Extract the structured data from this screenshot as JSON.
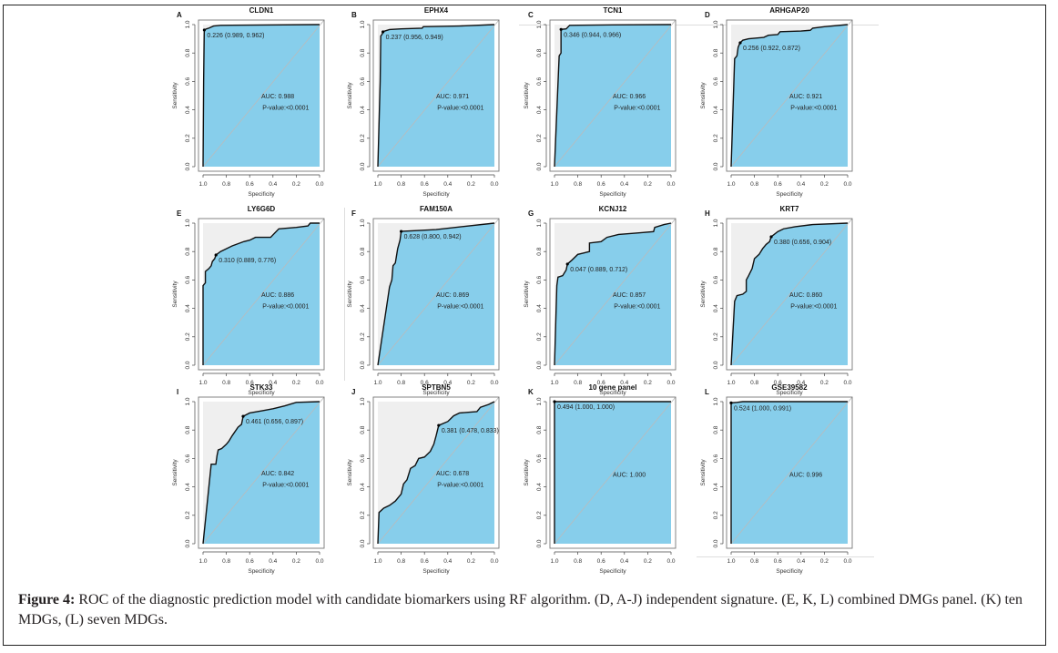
{
  "figure": {
    "caption_label": "Figure 4:",
    "caption_text": " ROC of the diagnostic prediction model with candidate biomarkers using RF algorithm. (D, A-J) independent signature. (E, K, L) combined DMGs panel. (K) ten MDGs, (L) seven MDGs."
  },
  "colors": {
    "auc_fill": "#87ceeb",
    "bg_fill": "#efefef",
    "curve": "#111111",
    "diagonal": "#bbbbbb",
    "axis": "#444444"
  },
  "chart_data": [
    {
      "type": "line",
      "panel": "A",
      "title": "CLDN1",
      "xlabel": "Specificity",
      "ylabel": "Sensitivity",
      "xlim": [
        1.0,
        0.0
      ],
      "ylim": [
        0.0,
        1.0
      ],
      "xticks": [
        "1.0",
        "0.8",
        "0.6",
        "0.4",
        "0.2",
        "0.0"
      ],
      "yticks": [
        "0.0",
        "0.2",
        "0.4",
        "0.6",
        "0.8",
        "1.0"
      ],
      "threshold_label": "0.226 (0.989, 0.962)",
      "threshold_point": [
        0.989,
        0.962
      ],
      "auc_label": "AUC: 0.988",
      "pvalue_label": "P-value:<0.0001",
      "curve": [
        [
          1.0,
          0.0
        ],
        [
          0.995,
          0.6
        ],
        [
          0.99,
          0.93
        ],
        [
          0.989,
          0.962
        ],
        [
          0.97,
          0.97
        ],
        [
          0.95,
          0.975
        ],
        [
          0.91,
          0.99
        ],
        [
          0.85,
          0.995
        ],
        [
          0.0,
          1.0
        ]
      ]
    },
    {
      "type": "line",
      "panel": "B",
      "title": "EPHX4",
      "xlabel": "Specificity",
      "ylabel": "Sensitivity",
      "xlim": [
        1.0,
        0.0
      ],
      "ylim": [
        0.0,
        1.0
      ],
      "xticks": [
        "1.0",
        "0.8",
        "0.6",
        "0.4",
        "0.2",
        "0.0"
      ],
      "yticks": [
        "0.0",
        "0.2",
        "0.4",
        "0.6",
        "0.8",
        "1.0"
      ],
      "threshold_label": "0.237 (0.956, 0.949)",
      "threshold_point": [
        0.956,
        0.949
      ],
      "auc_label": "AUC: 0.971",
      "pvalue_label": "P-value:<0.0001",
      "curve": [
        [
          1.0,
          0.0
        ],
        [
          0.98,
          0.6
        ],
        [
          0.975,
          0.92
        ],
        [
          0.965,
          0.93
        ],
        [
          0.956,
          0.949
        ],
        [
          0.94,
          0.955
        ],
        [
          0.9,
          0.965
        ],
        [
          0.8,
          0.97
        ],
        [
          0.62,
          0.975
        ],
        [
          0.61,
          0.985
        ],
        [
          0.3,
          0.99
        ],
        [
          0.0,
          1.0
        ]
      ]
    },
    {
      "type": "line",
      "panel": "C",
      "title": "TCN1",
      "xlabel": "Specificity",
      "ylabel": "Sensitivity",
      "xlim": [
        1.0,
        0.0
      ],
      "ylim": [
        0.0,
        1.0
      ],
      "xticks": [
        "1.0",
        "0.8",
        "0.6",
        "0.4",
        "0.2",
        "0.0"
      ],
      "yticks": [
        "0.0",
        "0.2",
        "0.4",
        "0.6",
        "0.8",
        "1.0"
      ],
      "threshold_label": "0.346 (0.944, 0.966)",
      "threshold_point": [
        0.944,
        0.966
      ],
      "auc_label": "AUC: 0.966",
      "pvalue_label": "P-value:<0.0001",
      "curve": [
        [
          1.0,
          0.0
        ],
        [
          0.96,
          0.78
        ],
        [
          0.944,
          0.8
        ],
        [
          0.944,
          0.966
        ],
        [
          0.9,
          0.97
        ],
        [
          0.87,
          0.995
        ],
        [
          0.5,
          0.998
        ],
        [
          0.0,
          1.0
        ]
      ]
    },
    {
      "type": "line",
      "panel": "D",
      "title": "ARHGAP20",
      "xlabel": "Specificity",
      "ylabel": "Sensitivity",
      "xlim": [
        1.0,
        0.0
      ],
      "ylim": [
        0.0,
        1.0
      ],
      "xticks": [
        "1.0",
        "0.8",
        "0.6",
        "0.4",
        "0.2",
        "0.0"
      ],
      "yticks": [
        "0.0",
        "0.2",
        "0.4",
        "0.6",
        "0.8",
        "1.0"
      ],
      "threshold_label": "0.256 (0.922, 0.872)",
      "threshold_point": [
        0.922,
        0.872
      ],
      "auc_label": "AUC: 0.921",
      "pvalue_label": "P-value:<0.0001",
      "curve": [
        [
          1.0,
          0.0
        ],
        [
          0.97,
          0.76
        ],
        [
          0.95,
          0.78
        ],
        [
          0.94,
          0.84
        ],
        [
          0.93,
          0.86
        ],
        [
          0.922,
          0.872
        ],
        [
          0.9,
          0.89
        ],
        [
          0.85,
          0.9
        ],
        [
          0.72,
          0.91
        ],
        [
          0.68,
          0.925
        ],
        [
          0.6,
          0.93
        ],
        [
          0.58,
          0.95
        ],
        [
          0.4,
          0.955
        ],
        [
          0.32,
          0.96
        ],
        [
          0.3,
          0.975
        ],
        [
          0.2,
          0.985
        ],
        [
          0.0,
          1.0
        ]
      ]
    },
    {
      "type": "line",
      "panel": "E",
      "title": "LY6G6D",
      "xlabel": "Specificity",
      "ylabel": "Sensitivity",
      "xlim": [
        1.0,
        0.0
      ],
      "ylim": [
        0.0,
        1.0
      ],
      "xticks": [
        "1.0",
        "0.8",
        "0.6",
        "0.4",
        "0.2",
        "0.0"
      ],
      "yticks": [
        "0.0",
        "0.2",
        "0.4",
        "0.6",
        "0.8",
        "1.0"
      ],
      "threshold_label": "0.310 (0.889, 0.776)",
      "threshold_point": [
        0.889,
        0.776
      ],
      "auc_label": "AUC: 0.886",
      "pvalue_label": "P-value:<0.0001",
      "curve": [
        [
          1.0,
          0.0
        ],
        [
          1.0,
          0.56
        ],
        [
          0.98,
          0.58
        ],
        [
          0.98,
          0.66
        ],
        [
          0.95,
          0.68
        ],
        [
          0.93,
          0.7
        ],
        [
          0.92,
          0.73
        ],
        [
          0.9,
          0.75
        ],
        [
          0.889,
          0.776
        ],
        [
          0.85,
          0.8
        ],
        [
          0.75,
          0.84
        ],
        [
          0.65,
          0.87
        ],
        [
          0.6,
          0.88
        ],
        [
          0.55,
          0.9
        ],
        [
          0.42,
          0.9
        ],
        [
          0.35,
          0.96
        ],
        [
          0.2,
          0.97
        ],
        [
          0.1,
          0.98
        ],
        [
          0.08,
          1.0
        ],
        [
          0.0,
          1.0
        ]
      ]
    },
    {
      "type": "line",
      "panel": "F",
      "title": "FAM150A",
      "xlabel": "Specificity",
      "ylabel": "Sensitivity",
      "xlim": [
        1.0,
        0.0
      ],
      "ylim": [
        0.0,
        1.0
      ],
      "xticks": [
        "1.0",
        "0.8",
        "0.6",
        "0.4",
        "0.2",
        "0.0"
      ],
      "yticks": [
        "0.0",
        "0.2",
        "0.4",
        "0.6",
        "0.8",
        "1.0"
      ],
      "threshold_label": "0.628 (0.800, 0.942)",
      "threshold_point": [
        0.8,
        0.942
      ],
      "auc_label": "AUC: 0.869",
      "pvalue_label": "P-value:<0.0001",
      "curve": [
        [
          1.0,
          0.0
        ],
        [
          0.9,
          0.55
        ],
        [
          0.88,
          0.6
        ],
        [
          0.87,
          0.7
        ],
        [
          0.85,
          0.72
        ],
        [
          0.83,
          0.82
        ],
        [
          0.81,
          0.88
        ],
        [
          0.8,
          0.942
        ],
        [
          0.5,
          0.955
        ],
        [
          0.0,
          1.0
        ]
      ]
    },
    {
      "type": "line",
      "panel": "G",
      "title": "KCNJ12",
      "xlabel": "Specificity",
      "ylabel": "Sensitivity",
      "xlim": [
        1.0,
        0.0
      ],
      "ylim": [
        0.0,
        1.0
      ],
      "xticks": [
        "1.0",
        "0.8",
        "0.6",
        "0.4",
        "0.2",
        "0.0"
      ],
      "yticks": [
        "0.0",
        "0.2",
        "0.4",
        "0.6",
        "0.8",
        "1.0"
      ],
      "threshold_label": "0.047 (0.889, 0.712)",
      "threshold_point": [
        0.889,
        0.712
      ],
      "auc_label": "AUC: 0.857",
      "pvalue_label": "P-value:<0.0001",
      "curve": [
        [
          1.0,
          0.0
        ],
        [
          0.98,
          0.56
        ],
        [
          0.97,
          0.62
        ],
        [
          0.93,
          0.63
        ],
        [
          0.9,
          0.67
        ],
        [
          0.889,
          0.712
        ],
        [
          0.85,
          0.74
        ],
        [
          0.8,
          0.78
        ],
        [
          0.75,
          0.79
        ],
        [
          0.7,
          0.8
        ],
        [
          0.7,
          0.86
        ],
        [
          0.6,
          0.87
        ],
        [
          0.55,
          0.9
        ],
        [
          0.45,
          0.92
        ],
        [
          0.3,
          0.93
        ],
        [
          0.15,
          0.94
        ],
        [
          0.14,
          0.97
        ],
        [
          0.06,
          0.99
        ],
        [
          0.0,
          1.0
        ]
      ]
    },
    {
      "type": "line",
      "panel": "H",
      "title": "KRT7",
      "xlabel": "Specificity",
      "ylabel": "Sensitivity",
      "xlim": [
        1.0,
        0.0
      ],
      "ylim": [
        0.0,
        1.0
      ],
      "xticks": [
        "1.0",
        "0.8",
        "0.6",
        "0.4",
        "0.2",
        "0.0"
      ],
      "yticks": [
        "0.0",
        "0.2",
        "0.4",
        "0.6",
        "0.8",
        "1.0"
      ],
      "threshold_label": "0.380 (0.656, 0.904)",
      "threshold_point": [
        0.656,
        0.904
      ],
      "auc_label": "AUC: 0.860",
      "pvalue_label": "P-value:<0.0001",
      "curve": [
        [
          1.0,
          0.0
        ],
        [
          0.97,
          0.45
        ],
        [
          0.95,
          0.49
        ],
        [
          0.9,
          0.5
        ],
        [
          0.87,
          0.52
        ],
        [
          0.87,
          0.6
        ],
        [
          0.85,
          0.63
        ],
        [
          0.82,
          0.68
        ],
        [
          0.8,
          0.75
        ],
        [
          0.76,
          0.78
        ],
        [
          0.73,
          0.82
        ],
        [
          0.7,
          0.85
        ],
        [
          0.67,
          0.87
        ],
        [
          0.656,
          0.904
        ],
        [
          0.6,
          0.94
        ],
        [
          0.55,
          0.96
        ],
        [
          0.45,
          0.975
        ],
        [
          0.3,
          0.99
        ],
        [
          0.0,
          1.0
        ]
      ]
    },
    {
      "type": "line",
      "panel": "I",
      "title": "STK33",
      "xlabel": "Specificity",
      "ylabel": "Sensitivity",
      "xlim": [
        1.0,
        0.0
      ],
      "ylim": [
        0.0,
        1.0
      ],
      "xticks": [
        "1.0",
        "0.8",
        "0.6",
        "0.4",
        "0.2",
        "0.0"
      ],
      "yticks": [
        "0.0",
        "0.2",
        "0.4",
        "0.6",
        "0.8",
        "1.0"
      ],
      "threshold_label": "0.461 (0.656, 0.897)",
      "threshold_point": [
        0.656,
        0.897
      ],
      "auc_label": "AUC: 0.842",
      "pvalue_label": "P-value:<0.0001",
      "curve": [
        [
          1.0,
          0.0
        ],
        [
          0.93,
          0.56
        ],
        [
          0.89,
          0.56
        ],
        [
          0.88,
          0.62
        ],
        [
          0.87,
          0.66
        ],
        [
          0.84,
          0.67
        ],
        [
          0.8,
          0.7
        ],
        [
          0.78,
          0.72
        ],
        [
          0.75,
          0.76
        ],
        [
          0.7,
          0.82
        ],
        [
          0.67,
          0.84
        ],
        [
          0.656,
          0.897
        ],
        [
          0.6,
          0.92
        ],
        [
          0.5,
          0.935
        ],
        [
          0.4,
          0.95
        ],
        [
          0.3,
          0.97
        ],
        [
          0.2,
          0.995
        ],
        [
          0.0,
          1.0
        ]
      ]
    },
    {
      "type": "line",
      "panel": "J",
      "title": "SPTBN5",
      "xlabel": "Specificity",
      "ylabel": "Sensitivity",
      "xlim": [
        1.0,
        0.0
      ],
      "ylim": [
        0.0,
        1.0
      ],
      "xticks": [
        "1.0",
        "0.8",
        "0.6",
        "0.4",
        "0.2",
        "0.0"
      ],
      "yticks": [
        "0.0",
        "0.2",
        "0.4",
        "0.6",
        "0.8",
        "1.0"
      ],
      "threshold_label": "0.381 (0.478, 0.833)",
      "threshold_point": [
        0.478,
        0.833
      ],
      "auc_label": "AUC: 0.678",
      "pvalue_label": "P-value:<0.0001",
      "curve": [
        [
          1.0,
          0.0
        ],
        [
          0.99,
          0.22
        ],
        [
          0.95,
          0.25
        ],
        [
          0.9,
          0.27
        ],
        [
          0.85,
          0.3
        ],
        [
          0.8,
          0.35
        ],
        [
          0.78,
          0.42
        ],
        [
          0.75,
          0.45
        ],
        [
          0.72,
          0.53
        ],
        [
          0.68,
          0.55
        ],
        [
          0.65,
          0.6
        ],
        [
          0.6,
          0.61
        ],
        [
          0.55,
          0.65
        ],
        [
          0.52,
          0.7
        ],
        [
          0.5,
          0.76
        ],
        [
          0.478,
          0.833
        ],
        [
          0.4,
          0.86
        ],
        [
          0.35,
          0.9
        ],
        [
          0.3,
          0.92
        ],
        [
          0.15,
          0.93
        ],
        [
          0.12,
          0.96
        ],
        [
          0.05,
          0.98
        ],
        [
          0.0,
          1.0
        ]
      ]
    },
    {
      "type": "line",
      "panel": "K",
      "title": "10 gene panel",
      "xlabel": "Specificity",
      "ylabel": "Sensitivity",
      "xlim": [
        1.0,
        0.0
      ],
      "ylim": [
        0.0,
        1.0
      ],
      "xticks": [
        "1.0",
        "0.8",
        "0.6",
        "0.4",
        "0.2",
        "0.0"
      ],
      "yticks": [
        "0.0",
        "0.2",
        "0.4",
        "0.6",
        "0.8",
        "1.0"
      ],
      "threshold_label": "0.494 (1.000, 1.000)",
      "threshold_point": [
        1.0,
        1.0
      ],
      "auc_label": "AUC: 1.000",
      "pvalue_label": "",
      "curve": [
        [
          1.0,
          0.0
        ],
        [
          1.0,
          1.0
        ],
        [
          0.0,
          1.0
        ]
      ]
    },
    {
      "type": "line",
      "panel": "L",
      "title": "GSE39582",
      "xlabel": "Specificity",
      "ylabel": "Sensitivity",
      "xlim": [
        1.0,
        0.0
      ],
      "ylim": [
        0.0,
        1.0
      ],
      "xticks": [
        "1.0",
        "0.8",
        "0.6",
        "0.4",
        "0.2",
        "0.0"
      ],
      "yticks": [
        "0.0",
        "0.2",
        "0.4",
        "0.6",
        "0.8",
        "1.0"
      ],
      "threshold_label": "0.524 (1.000, 0.991)",
      "threshold_point": [
        1.0,
        0.991
      ],
      "auc_label": "AUC: 0.996",
      "pvalue_label": "",
      "curve": [
        [
          1.0,
          0.0
        ],
        [
          1.0,
          0.991
        ],
        [
          0.95,
          0.995
        ],
        [
          0.9,
          1.0
        ],
        [
          0.0,
          1.0
        ]
      ]
    }
  ]
}
